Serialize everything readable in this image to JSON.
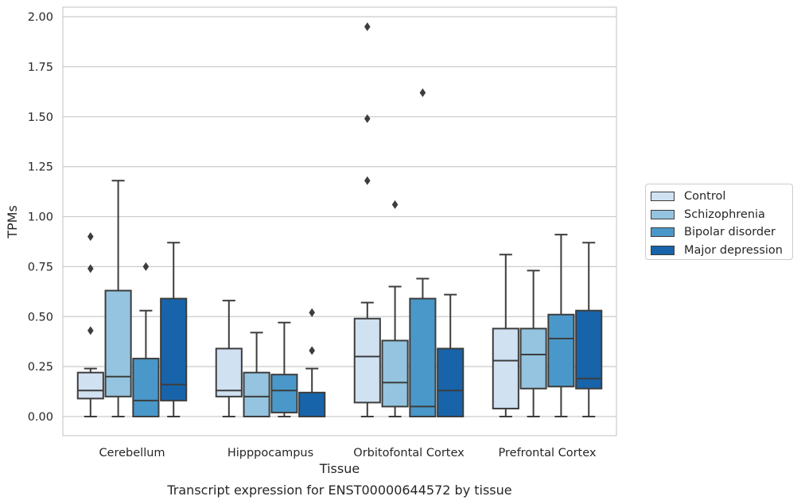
{
  "colors": {
    "Control": "#d0e1f2",
    "Schizophrenia": "#94c4df",
    "Bipolar disorder": "#4a98c9",
    "Major depression": "#1764ab",
    "box_edge": "#3d3d3d",
    "grid": "#cccccc"
  },
  "chart_data": {
    "type": "box",
    "title": "Transcript expression for ENST00000644572 by tissue",
    "xlabel": "Tissue",
    "ylabel": "TPMs",
    "ylim": [
      -0.1,
      2.03
    ],
    "yticks": [
      "0.00",
      "0.25",
      "0.50",
      "0.75",
      "1.00",
      "1.25",
      "1.50",
      "1.75",
      "2.00"
    ],
    "grid": true,
    "legend_position": "right",
    "categories": [
      "Cerebellum",
      "Hipppocampus",
      "Orbitofontal Cortex",
      "Prefrontal Cortex"
    ],
    "series": [
      {
        "name": "Control",
        "boxes": [
          {
            "min": 0.0,
            "q1": 0.09,
            "median": 0.13,
            "q3": 0.22,
            "max": 0.24,
            "outliers": [
              0.43,
              0.74,
              0.9
            ]
          },
          {
            "min": 0.0,
            "q1": 0.1,
            "median": 0.13,
            "q3": 0.34,
            "max": 0.58,
            "outliers": []
          },
          {
            "min": 0.0,
            "q1": 0.07,
            "median": 0.3,
            "q3": 0.49,
            "max": 0.57,
            "outliers": [
              1.18,
              1.49,
              1.95
            ]
          },
          {
            "min": 0.0,
            "q1": 0.04,
            "median": 0.28,
            "q3": 0.44,
            "max": 0.81,
            "outliers": []
          }
        ]
      },
      {
        "name": "Schizophrenia",
        "boxes": [
          {
            "min": 0.0,
            "q1": 0.1,
            "median": 0.2,
            "q3": 0.63,
            "max": 1.18,
            "outliers": []
          },
          {
            "min": 0.0,
            "q1": 0.0,
            "median": 0.1,
            "q3": 0.22,
            "max": 0.42,
            "outliers": []
          },
          {
            "min": 0.0,
            "q1": 0.05,
            "median": 0.17,
            "q3": 0.38,
            "max": 0.65,
            "outliers": [
              1.06
            ]
          },
          {
            "min": 0.0,
            "q1": 0.14,
            "median": 0.31,
            "q3": 0.44,
            "max": 0.73,
            "outliers": []
          }
        ]
      },
      {
        "name": "Bipolar disorder",
        "boxes": [
          {
            "min": 0.0,
            "q1": 0.0,
            "median": 0.08,
            "q3": 0.29,
            "max": 0.53,
            "outliers": [
              0.75
            ]
          },
          {
            "min": 0.0,
            "q1": 0.02,
            "median": 0.13,
            "q3": 0.21,
            "max": 0.47,
            "outliers": []
          },
          {
            "min": 0.0,
            "q1": 0.0,
            "median": 0.05,
            "q3": 0.59,
            "max": 0.69,
            "outliers": [
              1.62
            ]
          },
          {
            "min": 0.0,
            "q1": 0.15,
            "median": 0.39,
            "q3": 0.51,
            "max": 0.91,
            "outliers": []
          }
        ]
      },
      {
        "name": "Major depression",
        "boxes": [
          {
            "min": 0.0,
            "q1": 0.08,
            "median": 0.16,
            "q3": 0.59,
            "max": 0.87,
            "outliers": []
          },
          {
            "min": 0.0,
            "q1": 0.0,
            "median": 0.0,
            "q3": 0.12,
            "max": 0.24,
            "outliers": [
              0.33,
              0.52
            ]
          },
          {
            "min": 0.0,
            "q1": 0.0,
            "median": 0.13,
            "q3": 0.34,
            "max": 0.61,
            "outliers": []
          },
          {
            "min": 0.0,
            "q1": 0.14,
            "median": 0.19,
            "q3": 0.53,
            "max": 0.87,
            "outliers": []
          }
        ]
      }
    ]
  }
}
